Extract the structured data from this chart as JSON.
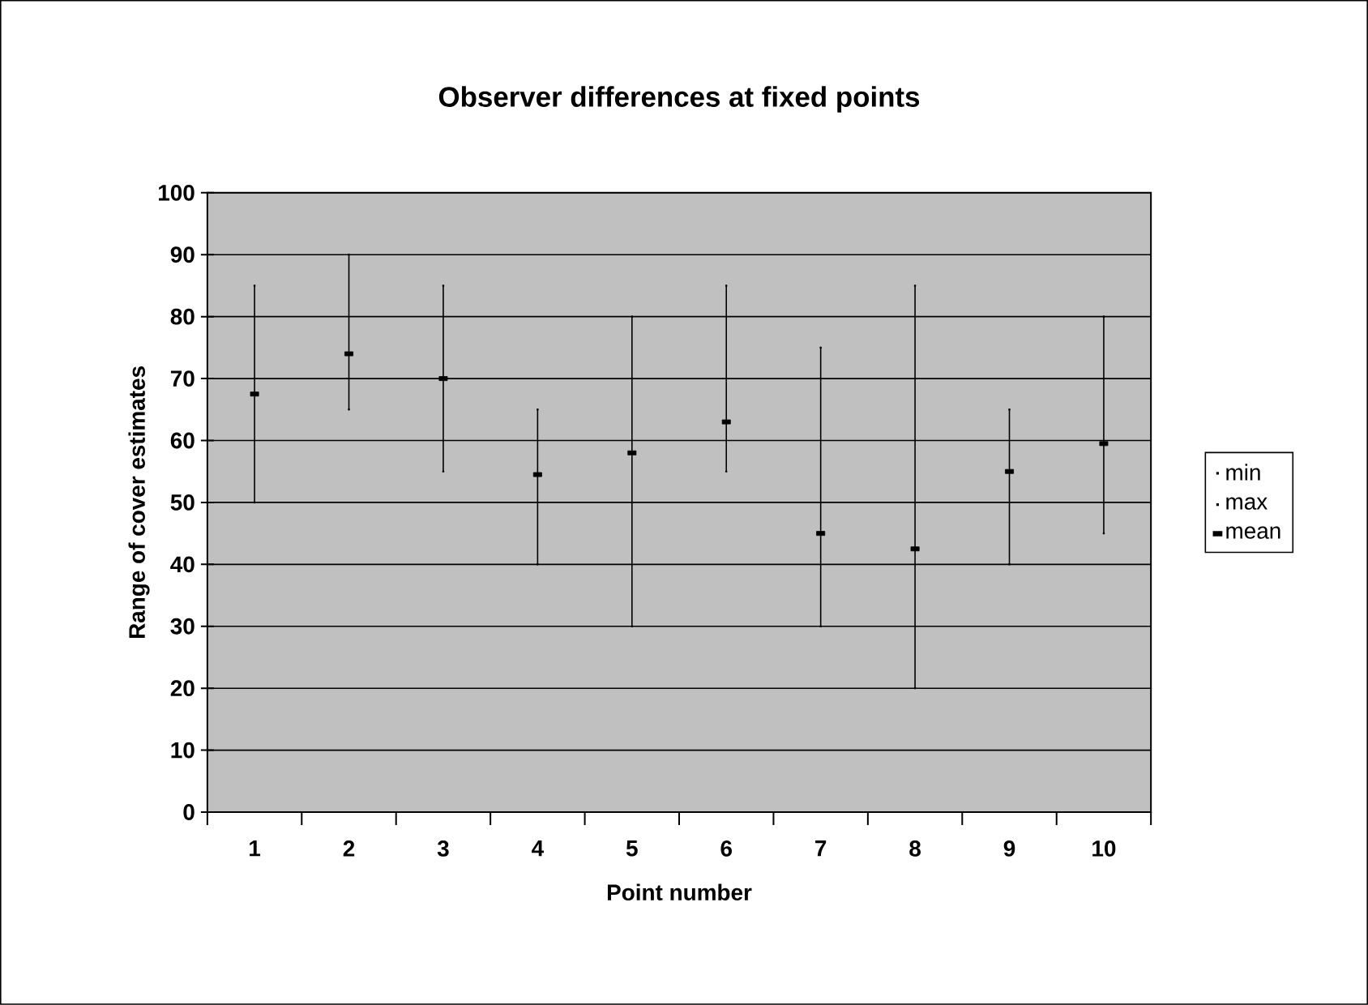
{
  "chart_data": {
    "type": "scatter",
    "title": "Observer differences at fixed points",
    "xlabel": "Point number",
    "ylabel": "Range of cover estimates",
    "categories": [
      "1",
      "2",
      "3",
      "4",
      "5",
      "6",
      "7",
      "8",
      "9",
      "10"
    ],
    "series": [
      {
        "name": "min",
        "color": "#000000",
        "values": [
          50,
          65,
          55,
          40,
          30,
          55,
          30,
          20,
          40,
          45
        ]
      },
      {
        "name": "max",
        "color": "#000000",
        "values": [
          85,
          90,
          85,
          65,
          80,
          85,
          75,
          85,
          65,
          80
        ]
      },
      {
        "name": "mean",
        "color": "#000000",
        "marker": "square",
        "values": [
          67.5,
          74,
          70,
          54.5,
          58,
          63,
          45,
          42.5,
          55,
          59.5
        ]
      }
    ],
    "ylim": [
      0,
      100
    ],
    "yticks": [
      0,
      10,
      20,
      30,
      40,
      50,
      60,
      70,
      80,
      90,
      100
    ],
    "grid": "y",
    "legend": "right"
  }
}
